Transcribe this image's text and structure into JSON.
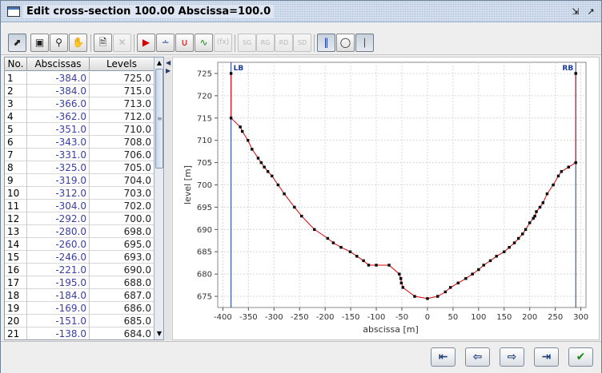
{
  "window": {
    "title": "Edit cross-section 100.00 Abscissa=100.0"
  },
  "toolbar": {
    "tools": [
      "select",
      "zoom-box",
      "zoom",
      "pan",
      "new",
      "delete",
      "mirror",
      "add-point",
      "section-a",
      "section-b",
      "formula",
      "sg",
      "rg",
      "rd",
      "sd",
      "vertical-lines",
      "edit-level",
      "banks"
    ],
    "labels": {
      "formula": "(fx)",
      "sg": "SG",
      "rg": "RG",
      "rd": "RD",
      "sd": "SD"
    }
  },
  "table": {
    "headers": {
      "no": "No.",
      "abscissas": "Abscissas",
      "levels": "Levels"
    },
    "rows": [
      {
        "no": "1",
        "abscissa": "-384.0",
        "level": "725.0"
      },
      {
        "no": "2",
        "abscissa": "-384.0",
        "level": "715.0"
      },
      {
        "no": "3",
        "abscissa": "-366.0",
        "level": "713.0"
      },
      {
        "no": "4",
        "abscissa": "-362.0",
        "level": "712.0"
      },
      {
        "no": "5",
        "abscissa": "-351.0",
        "level": "710.0"
      },
      {
        "no": "6",
        "abscissa": "-343.0",
        "level": "708.0"
      },
      {
        "no": "7",
        "abscissa": "-331.0",
        "level": "706.0"
      },
      {
        "no": "8",
        "abscissa": "-325.0",
        "level": "705.0"
      },
      {
        "no": "9",
        "abscissa": "-319.0",
        "level": "704.0"
      },
      {
        "no": "10",
        "abscissa": "-312.0",
        "level": "703.0"
      },
      {
        "no": "11",
        "abscissa": "-304.0",
        "level": "702.0"
      },
      {
        "no": "12",
        "abscissa": "-292.0",
        "level": "700.0"
      },
      {
        "no": "13",
        "abscissa": "-280.0",
        "level": "698.0"
      },
      {
        "no": "14",
        "abscissa": "-260.0",
        "level": "695.0"
      },
      {
        "no": "15",
        "abscissa": "-246.0",
        "level": "693.0"
      },
      {
        "no": "16",
        "abscissa": "-221.0",
        "level": "690.0"
      },
      {
        "no": "17",
        "abscissa": "-195.0",
        "level": "688.0"
      },
      {
        "no": "18",
        "abscissa": "-184.0",
        "level": "687.0"
      },
      {
        "no": "19",
        "abscissa": "-169.0",
        "level": "686.0"
      },
      {
        "no": "20",
        "abscissa": "-151.0",
        "level": "685.0"
      },
      {
        "no": "21",
        "abscissa": "-138.0",
        "level": "684.0"
      }
    ]
  },
  "chart_data": {
    "type": "line",
    "xlabel": "abscissa [m]",
    "ylabel": "level [m]",
    "xlim": [
      -410,
      310
    ],
    "ylim": [
      672.5,
      727.5
    ],
    "xticks": [
      -400,
      -350,
      -300,
      -250,
      -200,
      -150,
      -100,
      -50,
      0,
      50,
      100,
      150,
      200,
      250,
      300
    ],
    "yticks": [
      675,
      680,
      685,
      690,
      695,
      700,
      705,
      710,
      715,
      720,
      725
    ],
    "grid": true,
    "line_color": "#e00000",
    "point_color": "#000000",
    "bank_color": "#1a3a9a",
    "banks": [
      {
        "label": "LB",
        "x": -384
      },
      {
        "label": "RB",
        "x": 290
      }
    ],
    "points": [
      [
        -384,
        725
      ],
      [
        -384,
        715
      ],
      [
        -366,
        713
      ],
      [
        -362,
        712
      ],
      [
        -351,
        710
      ],
      [
        -343,
        708
      ],
      [
        -331,
        706
      ],
      [
        -325,
        705
      ],
      [
        -319,
        704
      ],
      [
        -312,
        703
      ],
      [
        -304,
        702
      ],
      [
        -292,
        700
      ],
      [
        -280,
        698
      ],
      [
        -260,
        695
      ],
      [
        -246,
        693
      ],
      [
        -221,
        690
      ],
      [
        -195,
        688
      ],
      [
        -184,
        687
      ],
      [
        -169,
        686
      ],
      [
        -151,
        685
      ],
      [
        -138,
        684
      ],
      [
        -125,
        683
      ],
      [
        -115,
        682
      ],
      [
        -100,
        682
      ],
      [
        -75,
        682
      ],
      [
        -55,
        680
      ],
      [
        -52,
        679
      ],
      [
        -51,
        678
      ],
      [
        -48,
        677
      ],
      [
        -25,
        675
      ],
      [
        0,
        674.5
      ],
      [
        20,
        675
      ],
      [
        35,
        676
      ],
      [
        45,
        677
      ],
      [
        60,
        678
      ],
      [
        75,
        679
      ],
      [
        88,
        680
      ],
      [
        100,
        681
      ],
      [
        110,
        682
      ],
      [
        123,
        683
      ],
      [
        135,
        684
      ],
      [
        150,
        685
      ],
      [
        160,
        686
      ],
      [
        170,
        687
      ],
      [
        178,
        688
      ],
      [
        186,
        689
      ],
      [
        192,
        690
      ],
      [
        200,
        691.5
      ],
      [
        207,
        692.5
      ],
      [
        210,
        693
      ],
      [
        213,
        694
      ],
      [
        220,
        695
      ],
      [
        226,
        696
      ],
      [
        234,
        698
      ],
      [
        246,
        700
      ],
      [
        256,
        702
      ],
      [
        262,
        703
      ],
      [
        276,
        704
      ],
      [
        290,
        705
      ],
      [
        290,
        725
      ]
    ]
  },
  "nav": {
    "buttons": [
      "first-button",
      "previous-button",
      "next-button",
      "last-button",
      "ok-button"
    ]
  }
}
